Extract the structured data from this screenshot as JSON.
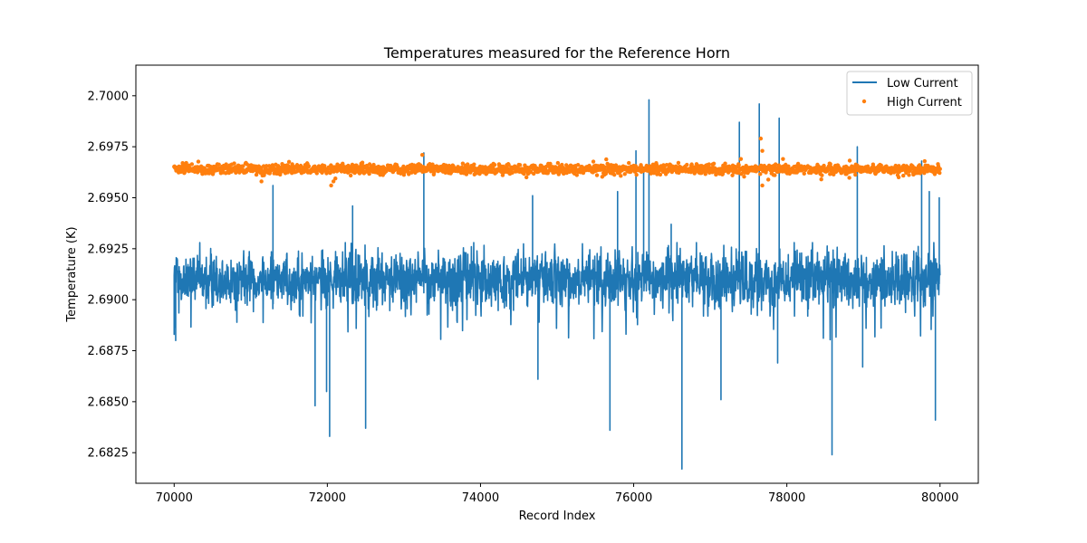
{
  "chart_data": {
    "type": "line",
    "title": "Temperatures measured for the Reference Horn",
    "xlabel": "Record Index",
    "ylabel": "Temperature (K)",
    "xlim": [
      69500,
      80500
    ],
    "ylim": [
      2.681,
      2.7015
    ],
    "xticks": [
      70000,
      72000,
      74000,
      76000,
      78000,
      80000
    ],
    "xtick_labels": [
      "70000",
      "72000",
      "74000",
      "76000",
      "78000",
      "80000"
    ],
    "yticks": [
      2.6825,
      2.685,
      2.6875,
      2.69,
      2.6925,
      2.695,
      2.6975,
      2.7
    ],
    "ytick_labels": [
      "2.6825",
      "2.6850",
      "2.6875",
      "2.6900",
      "2.6925",
      "2.6950",
      "2.6975",
      "2.7000"
    ],
    "legend_position": "top-right",
    "series": [
      {
        "name": "Low Current",
        "style": "line",
        "color": "#1f77b4",
        "x_range": [
          70000,
          80000
        ],
        "baseline": 2.691,
        "noise": 0.0012,
        "spikes": [
          {
            "x": 70000,
            "y": 2.6883
          },
          {
            "x": 70020,
            "y": 2.688
          },
          {
            "x": 71290,
            "y": 2.6956
          },
          {
            "x": 71840,
            "y": 2.6848
          },
          {
            "x": 71990,
            "y": 2.6855
          },
          {
            "x": 72030,
            "y": 2.6833
          },
          {
            "x": 72330,
            "y": 2.6946
          },
          {
            "x": 72500,
            "y": 2.6837
          },
          {
            "x": 73260,
            "y": 2.6972
          },
          {
            "x": 74680,
            "y": 2.6951
          },
          {
            "x": 74750,
            "y": 2.6861
          },
          {
            "x": 75690,
            "y": 2.6836
          },
          {
            "x": 75790,
            "y": 2.6953
          },
          {
            "x": 76030,
            "y": 2.6973
          },
          {
            "x": 76130,
            "y": 2.6965
          },
          {
            "x": 76200,
            "y": 2.6998
          },
          {
            "x": 76490,
            "y": 2.6937
          },
          {
            "x": 76630,
            "y": 2.6817
          },
          {
            "x": 77140,
            "y": 2.6851
          },
          {
            "x": 77380,
            "y": 2.6987
          },
          {
            "x": 77640,
            "y": 2.6996
          },
          {
            "x": 77900,
            "y": 2.6989
          },
          {
            "x": 77880,
            "y": 2.6869
          },
          {
            "x": 78590,
            "y": 2.6824
          },
          {
            "x": 78920,
            "y": 2.6975
          },
          {
            "x": 78990,
            "y": 2.6867
          },
          {
            "x": 79760,
            "y": 2.6968
          },
          {
            "x": 79860,
            "y": 2.6953
          },
          {
            "x": 79940,
            "y": 2.6841
          },
          {
            "x": 79990,
            "y": 2.695
          }
        ]
      },
      {
        "name": "High Current",
        "style": "scatter",
        "color": "#ff7f0e",
        "x_range": [
          70000,
          80000
        ],
        "baseline": 2.6964,
        "noise": 0.00025,
        "outliers": [
          {
            "x": 71140,
            "y": 2.6958
          },
          {
            "x": 72050,
            "y": 2.6956
          },
          {
            "x": 72080,
            "y": 2.6958
          },
          {
            "x": 73240,
            "y": 2.6971
          },
          {
            "x": 74600,
            "y": 2.696
          },
          {
            "x": 77400,
            "y": 2.6969
          },
          {
            "x": 77660,
            "y": 2.6979
          },
          {
            "x": 77680,
            "y": 2.6973
          },
          {
            "x": 77680,
            "y": 2.6956
          },
          {
            "x": 77950,
            "y": 2.6969
          },
          {
            "x": 78450,
            "y": 2.6959
          },
          {
            "x": 79460,
            "y": 2.696
          }
        ]
      }
    ]
  }
}
